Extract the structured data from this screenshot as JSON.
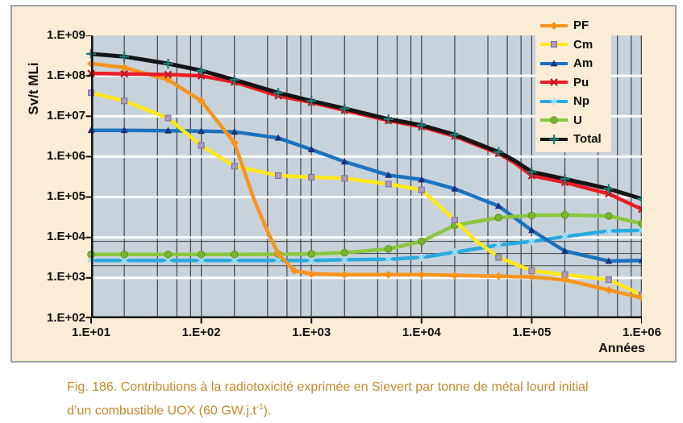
{
  "figure": {
    "caption_line1": "Fig. 186. Contributions à la radiotoxicité exprimée en Sievert par tonne de métal lourd initial",
    "caption_line2_prefix": "d’un combustible UOX (60 GW.j.t",
    "caption_sup": "-1",
    "caption_line2_suffix": ").",
    "caption_color": "#C7892E"
  },
  "colors": {
    "page_bg": "#FFFFFF",
    "panel_bg": "#FAEDD5",
    "panel_border": "#99A1A7",
    "plot_bg": "#C8D2DA",
    "grid_dark": "#3E4347",
    "grid_white": "#FFFFFF",
    "axis": "#111111",
    "text": "#111111"
  },
  "chart_data": {
    "type": "line",
    "title": "",
    "xlabel": "Années",
    "ylabel": "Sv/t MLi",
    "x_scale": "log",
    "y_scale": "log",
    "xlim": [
      10,
      1000000
    ],
    "ylim": [
      100,
      1000000000
    ],
    "x_ticks": [
      "1.E+01",
      "1.E+02",
      "1.E+03",
      "1.E+04",
      "1.E+05",
      "1.E+06"
    ],
    "y_ticks": [
      "1.E+09",
      "1.E+08",
      "1.E+07",
      "1.E+06",
      "1.E+05",
      "1.E+04",
      "1.E+03",
      "1.E+02"
    ],
    "x_minor_grid_multiples": [
      2,
      4,
      6,
      8
    ],
    "reference_hlines": [
      8000,
      4000,
      2000
    ],
    "grid": "on",
    "legend_position": "top-right",
    "series": [
      {
        "name": "Np",
        "color": "#2BA9E0",
        "marker": "asterisk",
        "marker_color": "#A5DFF6",
        "points": [
          [
            10,
            2700
          ],
          [
            20,
            2700
          ],
          [
            50,
            2700
          ],
          [
            100,
            2700
          ],
          [
            200,
            2700
          ],
          [
            500,
            2700
          ],
          [
            1000,
            2700
          ],
          [
            2000,
            2800
          ],
          [
            5000,
            2900
          ],
          [
            10000,
            3200
          ],
          [
            20000,
            4300
          ],
          [
            50000,
            6500
          ],
          [
            100000,
            8000
          ],
          [
            200000,
            10500
          ],
          [
            500000,
            14500
          ],
          [
            1000000,
            15000
          ]
        ]
      },
      {
        "name": "Am",
        "color": "#1B72BE",
        "marker": "triangle",
        "marker_color": "#1E2F7D",
        "points": [
          [
            10,
            4500000
          ],
          [
            20,
            4500000
          ],
          [
            50,
            4400000
          ],
          [
            100,
            4300000
          ],
          [
            200,
            4100000
          ],
          [
            500,
            2900000
          ],
          [
            1000,
            1500000
          ],
          [
            2000,
            750000
          ],
          [
            5000,
            350000
          ],
          [
            10000,
            270000
          ],
          [
            20000,
            160000
          ],
          [
            50000,
            60000
          ],
          [
            100000,
            15000
          ],
          [
            200000,
            4600
          ],
          [
            500000,
            2600
          ],
          [
            1000000,
            2700
          ]
        ]
      },
      {
        "name": "U",
        "color": "#8CC63E",
        "marker": "circle",
        "marker_color": "#79B42E",
        "points": [
          [
            10,
            3800
          ],
          [
            20,
            3800
          ],
          [
            50,
            3800
          ],
          [
            100,
            3800
          ],
          [
            200,
            3800
          ],
          [
            500,
            3850
          ],
          [
            1000,
            3900
          ],
          [
            2000,
            4200
          ],
          [
            5000,
            5200
          ],
          [
            10000,
            8000
          ],
          [
            20000,
            20000
          ],
          [
            50000,
            31000
          ],
          [
            100000,
            35000
          ],
          [
            200000,
            36000
          ],
          [
            500000,
            34000
          ],
          [
            1000000,
            22000
          ]
        ]
      },
      {
        "name": "Cm",
        "color": "#FFE817",
        "marker": "square",
        "marker_color": "#A89BC9",
        "points": [
          [
            10,
            38000000
          ],
          [
            20,
            24000000
          ],
          [
            50,
            9000000
          ],
          [
            100,
            1900000
          ],
          [
            200,
            580000
          ],
          [
            500,
            340000
          ],
          [
            1000,
            310000
          ],
          [
            2000,
            290000
          ],
          [
            5000,
            210000
          ],
          [
            10000,
            150000
          ],
          [
            20000,
            27000
          ],
          [
            30000,
            9000,
            0
          ],
          [
            50000,
            3200
          ],
          [
            100000,
            1500
          ],
          [
            200000,
            1200
          ],
          [
            500000,
            900
          ],
          [
            1000000,
            380
          ]
        ]
      },
      {
        "name": "PF",
        "color": "#F7941D",
        "marker": "diamond",
        "marker_color": "#F7941D",
        "points": [
          [
            10,
            200000000
          ],
          [
            20,
            160000000
          ],
          [
            50,
            80000000
          ],
          [
            100,
            24000000
          ],
          [
            200,
            2200000
          ],
          [
            300,
            90000,
            0
          ],
          [
            400,
            14000,
            0
          ],
          [
            500,
            3900
          ],
          [
            700,
            1500
          ],
          [
            1000,
            1250
          ],
          [
            2000,
            1200
          ],
          [
            5000,
            1200
          ],
          [
            10000,
            1200
          ],
          [
            20000,
            1150
          ],
          [
            50000,
            1100
          ],
          [
            100000,
            1050
          ],
          [
            200000,
            900
          ],
          [
            500000,
            500
          ],
          [
            1000000,
            320
          ]
        ]
      },
      {
        "name": "Pu",
        "color": "#EB1C24",
        "marker": "x",
        "marker_color": "#C01520",
        "points": [
          [
            10,
            115000000
          ],
          [
            20,
            112000000
          ],
          [
            50,
            108000000
          ],
          [
            100,
            100000000
          ],
          [
            200,
            70000000
          ],
          [
            500,
            32000000
          ],
          [
            1000,
            22000000
          ],
          [
            2000,
            14000000
          ],
          [
            5000,
            7800000
          ],
          [
            10000,
            5500000
          ],
          [
            20000,
            3200000
          ],
          [
            50000,
            1200000
          ],
          [
            70000,
            700000,
            0
          ],
          [
            100000,
            340000
          ],
          [
            200000,
            230000
          ],
          [
            500000,
            120000
          ],
          [
            1000000,
            50000
          ]
        ]
      },
      {
        "name": "Total",
        "color": "#151515",
        "width": 5,
        "marker": "plus",
        "marker_color": "#1C7F78",
        "points": [
          [
            10,
            350000000
          ],
          [
            20,
            300000000
          ],
          [
            50,
            200000000
          ],
          [
            100,
            135000000
          ],
          [
            200,
            80000000
          ],
          [
            500,
            38000000
          ],
          [
            1000,
            24000000
          ],
          [
            2000,
            15500000
          ],
          [
            5000,
            8500000
          ],
          [
            10000,
            6000000
          ],
          [
            20000,
            3500000
          ],
          [
            50000,
            1300000
          ],
          [
            70000,
            800000,
            0
          ],
          [
            100000,
            420000
          ],
          [
            200000,
            280000
          ],
          [
            500000,
            160000
          ],
          [
            1000000,
            90000
          ]
        ]
      }
    ]
  }
}
